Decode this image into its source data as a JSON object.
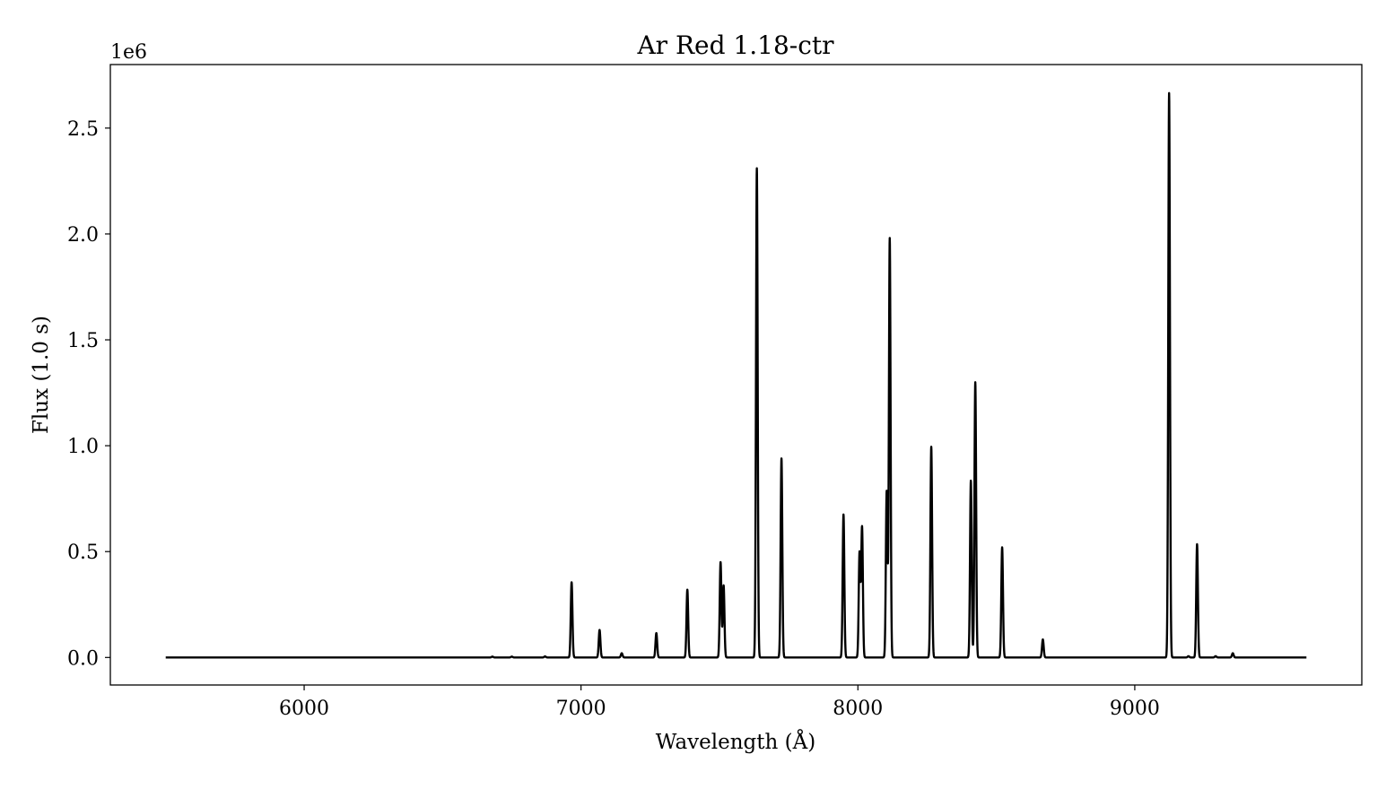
{
  "chart_data": {
    "type": "line",
    "title": "Ar Red 1.18-ctr",
    "xlabel": "Wavelength (Å)",
    "ylabel": "Flux (1.0 s)",
    "y_offset_label": "1e6",
    "xlim": [
      5300,
      9820
    ],
    "ylim": [
      -0.13,
      2.8
    ],
    "x_ticks": [
      6000,
      7000,
      8000,
      9000
    ],
    "x_tick_labels": [
      "6000",
      "7000",
      "8000",
      "9000"
    ],
    "y_ticks": [
      0.0,
      0.5,
      1.0,
      1.5,
      2.0,
      2.5
    ],
    "y_tick_labels": [
      "0.0",
      "0.5",
      "1.0",
      "1.5",
      "2.0",
      "2.5"
    ],
    "grid": false,
    "legend": "none",
    "line_color": "#000000",
    "series": [
      {
        "x_range": [
          5500,
          9620
        ],
        "baseline": 0.0,
        "line_width_angstrom": 3,
        "peaks": [
          {
            "x": 6680,
            "y": 0.004
          },
          {
            "x": 6750,
            "y": 0.004
          },
          {
            "x": 6870,
            "y": 0.005
          },
          {
            "x": 6966,
            "y": 0.355
          },
          {
            "x": 7067,
            "y": 0.13
          },
          {
            "x": 7147,
            "y": 0.02
          },
          {
            "x": 7272,
            "y": 0.115
          },
          {
            "x": 7384,
            "y": 0.32
          },
          {
            "x": 7504,
            "y": 0.45
          },
          {
            "x": 7515,
            "y": 0.34
          },
          {
            "x": 7635,
            "y": 2.31
          },
          {
            "x": 7724,
            "y": 0.94
          },
          {
            "x": 7948,
            "y": 0.675
          },
          {
            "x": 8006,
            "y": 0.495
          },
          {
            "x": 8015,
            "y": 0.615
          },
          {
            "x": 8104,
            "y": 0.785
          },
          {
            "x": 8115,
            "y": 1.98
          },
          {
            "x": 8265,
            "y": 0.995
          },
          {
            "x": 8408,
            "y": 0.835
          },
          {
            "x": 8424,
            "y": 1.3
          },
          {
            "x": 8521,
            "y": 0.52
          },
          {
            "x": 8668,
            "y": 0.085
          },
          {
            "x": 9124,
            "y": 2.665
          },
          {
            "x": 9194,
            "y": 0.006
          },
          {
            "x": 9225,
            "y": 0.535
          },
          {
            "x": 9292,
            "y": 0.006
          },
          {
            "x": 9354,
            "y": 0.02
          }
        ]
      }
    ]
  }
}
